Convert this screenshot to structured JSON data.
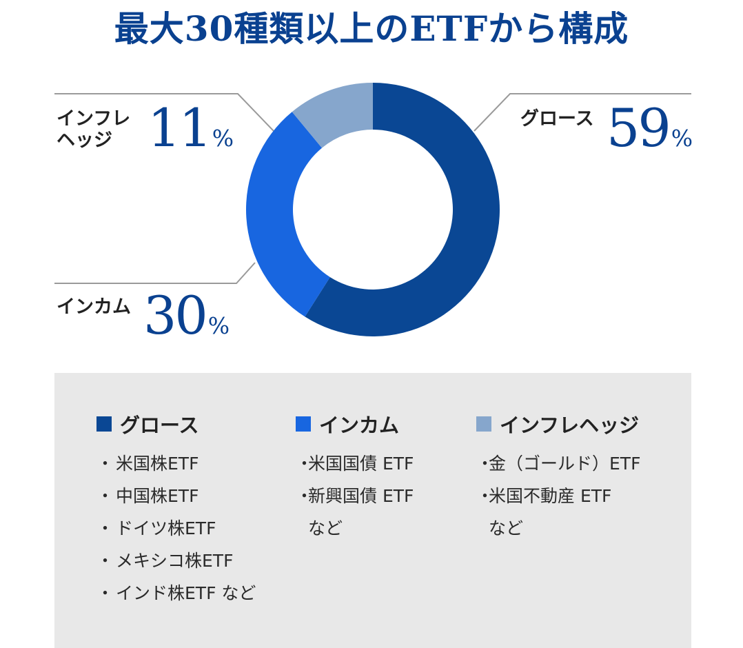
{
  "title": "最大30種類以上のETFから構成",
  "colors": {
    "growth": "#0a4794",
    "income": "#1866e0",
    "hedge": "#86a6cc",
    "leader": "#9a9a9a",
    "title": "#0a4190",
    "panel": "#e8e8e8"
  },
  "chart_data": {
    "type": "pie",
    "title": "最大30種類以上のETFから構成",
    "slices": [
      {
        "label": "グロース",
        "value": 59,
        "unit": "%",
        "color": "#0a4794"
      },
      {
        "label": "インカム",
        "value": 30,
        "unit": "%",
        "color": "#1866e0"
      },
      {
        "label": "インフレヘッジ",
        "value": 11,
        "unit": "%",
        "color": "#86a6cc"
      }
    ]
  },
  "labels": {
    "growth": {
      "name": "グロース",
      "value": "59",
      "unit": "%"
    },
    "income": {
      "name": "インカム",
      "value": "30",
      "unit": "%"
    },
    "hedge": {
      "name_line1": "インフレ",
      "name_line2": "ヘッジ",
      "value": "11",
      "unit": "%"
    }
  },
  "legend": {
    "bullet": "・",
    "columns": [
      {
        "key": "growth",
        "title": "グロース",
        "items": [
          "米国株ETF",
          "中国株ETF",
          "ドイツ株ETF",
          "メキシコ株ETF",
          "インド株ETF など"
        ]
      },
      {
        "key": "income",
        "title": "インカム",
        "items": [
          "米国国債 ETF",
          "新興国債 ETF",
          "など"
        ]
      },
      {
        "key": "hedge",
        "title": "インフレヘッジ",
        "items": [
          "金（ゴールド）ETF",
          "米国不動産 ETF",
          "など"
        ]
      }
    ]
  }
}
